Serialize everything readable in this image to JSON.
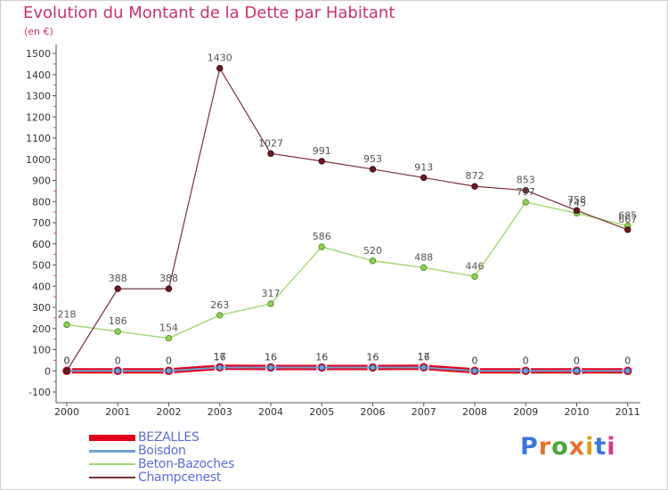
{
  "title": "Evolution du Montant de la Dette par Habitant",
  "unit_label": "(en €)",
  "logo": {
    "text": "Proxiti",
    "colors": [
      "#3a78d8",
      "#e8702a",
      "#4aa83a",
      "#e8702a",
      "#d8a020",
      "#3a78d8",
      "#d83a8a"
    ]
  },
  "chart_data": {
    "type": "line",
    "title": "Evolution du Montant de la Dette par Habitant",
    "ylabel": "(en €)",
    "xlabel": "",
    "categories": [
      "2000",
      "2001",
      "2002",
      "2003",
      "2004",
      "2005",
      "2006",
      "2007",
      "2008",
      "2009",
      "2010",
      "2011"
    ],
    "ylim": [
      -100,
      1500
    ],
    "yticks": [
      "-100",
      "0",
      "100",
      "200",
      "300",
      "400",
      "500",
      "600",
      "700",
      "800",
      "900",
      "1000",
      "1100",
      "1200",
      "1300",
      "1400",
      "1500"
    ],
    "grid": false,
    "legend_position": "bottom-left",
    "series": [
      {
        "name": "BEZALLES",
        "color": "#e0001a",
        "values": [
          0,
          0,
          0,
          17,
          16,
          16,
          16,
          17,
          0,
          0,
          0,
          0
        ],
        "labels": [
          "0",
          "0",
          "0",
          "17",
          "16",
          "16",
          "16",
          "17",
          "0",
          "0",
          "0",
          "0"
        ]
      },
      {
        "name": "Boisdon",
        "color": "#6ea0d0",
        "values": [
          0,
          0,
          0,
          16,
          16,
          16,
          16,
          16,
          0,
          0,
          0,
          0
        ],
        "labels": [
          "0",
          "0",
          "0",
          "16",
          "16",
          "16",
          "16",
          "16",
          "0",
          "0",
          "0",
          "0"
        ]
      },
      {
        "name": "Beton-Bazoches",
        "color": "#9fd870",
        "values": [
          218,
          186,
          154,
          263,
          317,
          586,
          520,
          488,
          446,
          797,
          745,
          685
        ],
        "labels": [
          "218",
          "186",
          "154",
          "263",
          "317",
          "586",
          "520",
          "488",
          "446",
          "797",
          "745",
          "685"
        ]
      },
      {
        "name": "Champcenest",
        "color": "#7a3038",
        "values": [
          0,
          388,
          388,
          1430,
          1027,
          991,
          953,
          913,
          872,
          853,
          758,
          667
        ],
        "labels": [
          "0",
          "388",
          "388",
          "1430",
          "1027",
          "991",
          "953",
          "913",
          "872",
          "853",
          "758",
          "667"
        ]
      }
    ]
  }
}
